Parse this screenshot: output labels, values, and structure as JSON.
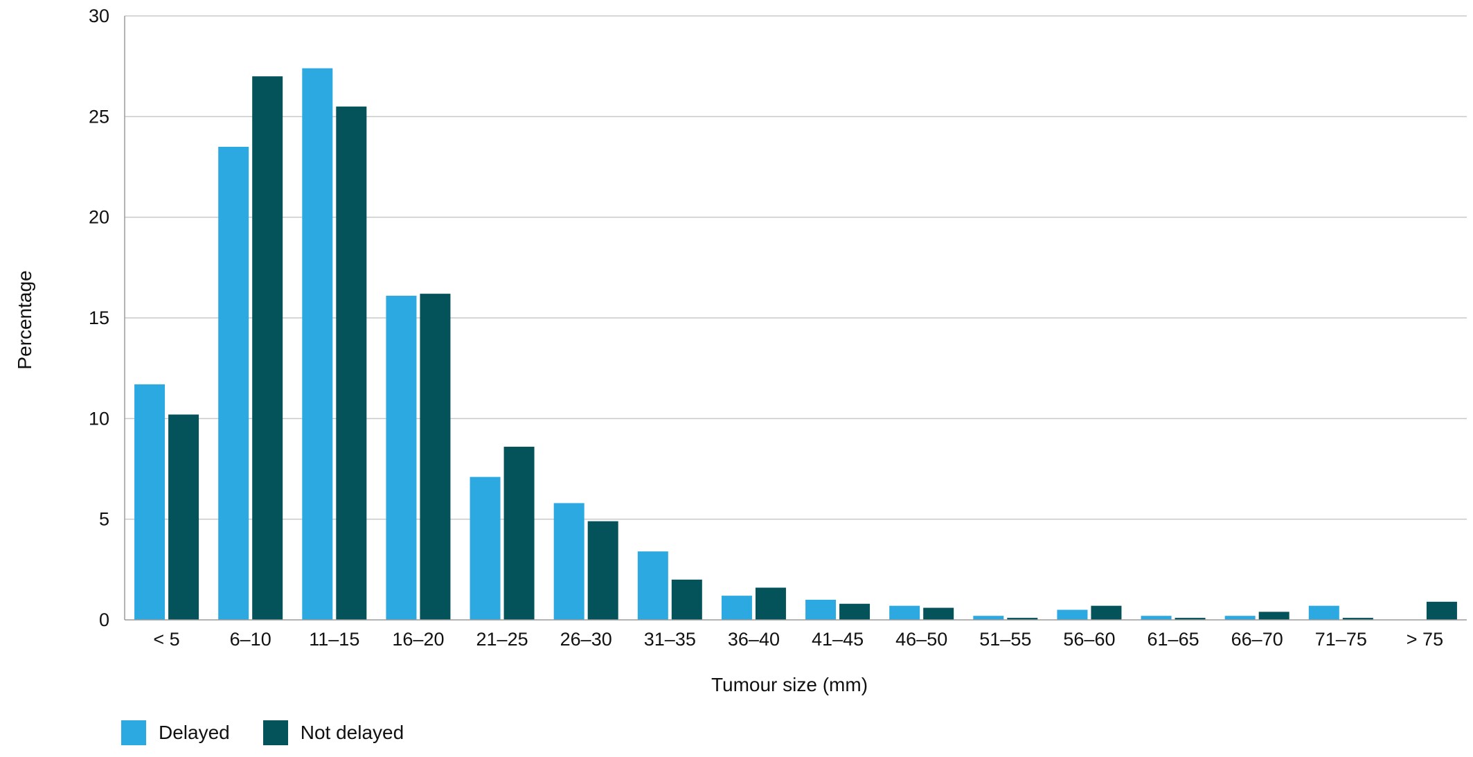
{
  "chart_data": {
    "type": "bar",
    "xlabel": "Tumour size (mm)",
    "ylabel": "Percentage",
    "ylim": [
      0,
      30
    ],
    "yticks": [
      0,
      5,
      10,
      15,
      20,
      25,
      30
    ],
    "grid": true,
    "legend_position": "bottom-left",
    "categories": [
      "< 5",
      "6–10",
      "11–15",
      "16–20",
      "21–25",
      "26–30",
      "31–35",
      "36–40",
      "41–45",
      "46–50",
      "51–55",
      "56–60",
      "61–65",
      "66–70",
      "71–75",
      "> 75"
    ],
    "series": [
      {
        "name": "Delayed",
        "color": "#2da9e1",
        "values": [
          11.7,
          23.5,
          27.4,
          16.1,
          7.1,
          5.8,
          3.4,
          1.2,
          1.0,
          0.7,
          0.2,
          0.5,
          0.2,
          0.2,
          0.7,
          0.0
        ]
      },
      {
        "name": "Not delayed",
        "color": "#04525a",
        "values": [
          10.2,
          27.0,
          25.5,
          16.2,
          8.6,
          4.9,
          2.0,
          1.6,
          0.8,
          0.6,
          0.1,
          0.7,
          0.1,
          0.4,
          0.1,
          0.9
        ]
      }
    ]
  }
}
